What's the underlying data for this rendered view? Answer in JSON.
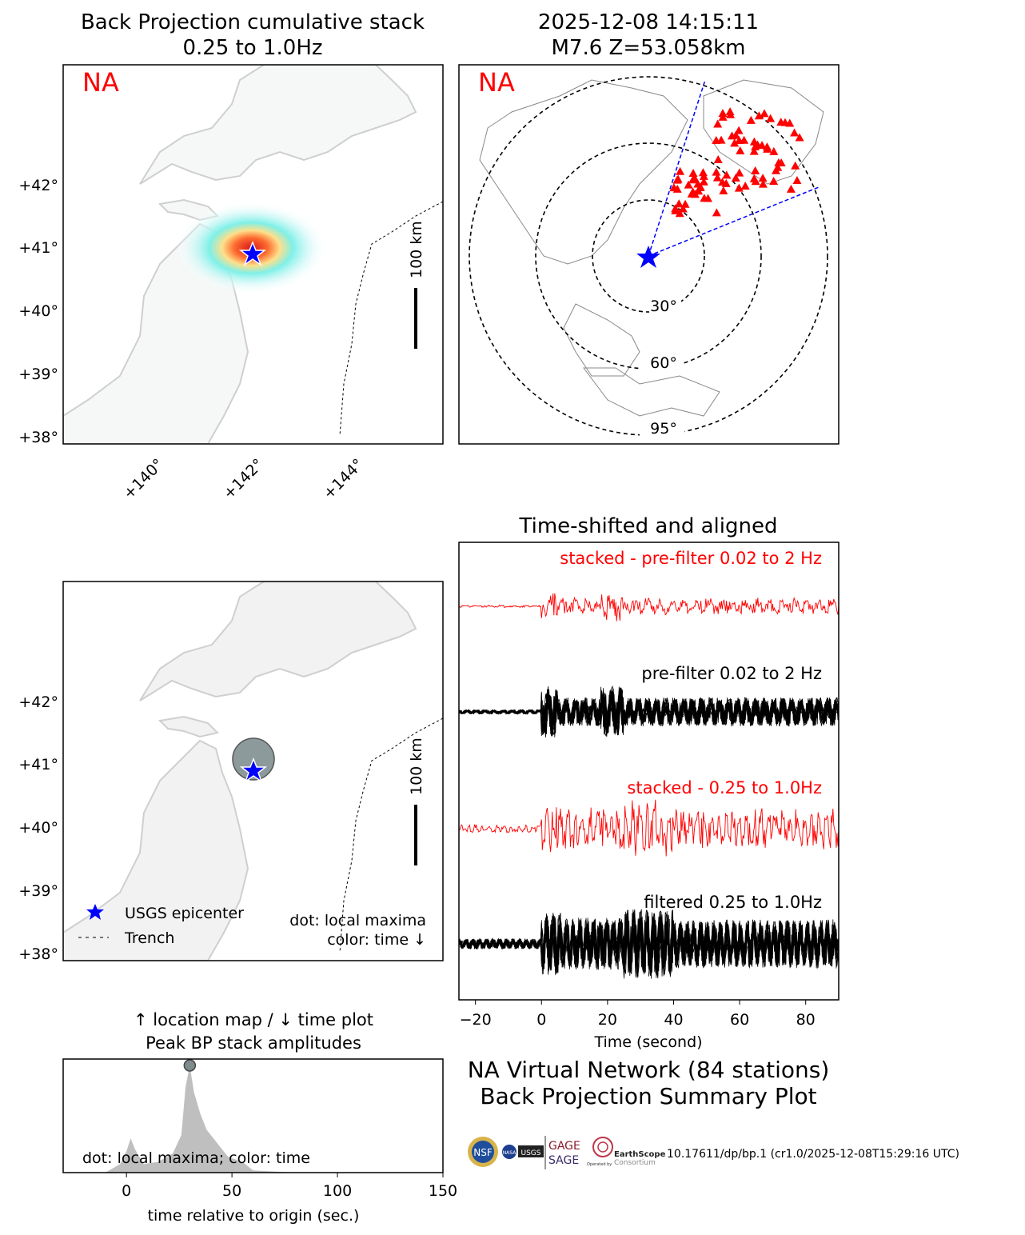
{
  "panels": {
    "bp_map": {
      "title": [
        "Back Projection cumulative stack",
        "0.25 to 1.0Hz"
      ],
      "network_tag": "NA",
      "scale_label": "100 km",
      "lat_ticks": [
        "+42°",
        "+41°",
        "+40°",
        "+39°",
        "+38°"
      ],
      "lon_ticks": [
        "+140°",
        "+142°",
        "+144°"
      ]
    },
    "station_map": {
      "title": [
        "2025-12-08 14:15:11",
        "M7.6 Z=53.058km"
      ],
      "network_tag": "NA",
      "ring_labels": [
        "30°",
        "60°",
        "95°"
      ]
    },
    "local_max_map": {
      "scale_label": "100 km",
      "lat_ticks": [
        "+42°",
        "+41°",
        "+40°",
        "+39°",
        "+38°"
      ],
      "legend": [
        "USGS epicenter",
        "Trench"
      ],
      "note": [
        "dot: local maxima",
        "color: time ↓"
      ]
    },
    "peak_plot": {
      "title": [
        "↑ location map / ↓ time plot",
        "Peak BP stack amplitudes"
      ],
      "note": "dot: local maxima; color: time",
      "xlabel": "time relative to origin (sec.)",
      "x_ticks": [
        "0",
        "50",
        "100",
        "150"
      ]
    },
    "traces": {
      "title": "Time-shifted and aligned",
      "labels": [
        "stacked - pre-filter 0.02 to 2 Hz",
        "pre-filter 0.02 to 2 Hz",
        "stacked - 0.25 to 1.0Hz",
        "filtered 0.25 to 1.0Hz"
      ],
      "xlabel": "Time (second)",
      "x_ticks": [
        "−20",
        "0",
        "20",
        "40",
        "60",
        "80"
      ]
    },
    "summary": {
      "lines": [
        "NA Virtual Network (84 stations)",
        "Back Projection Summary Plot"
      ],
      "doi": "10.17611/dp/bp.1 (cr1.0/2025-12-08T15:29:16 UTC)",
      "logo_text": [
        "NSF",
        "NASA",
        "USGS",
        "GAGE",
        "SAGE",
        "EarthScope",
        "Consortium",
        "Operated by"
      ]
    }
  },
  "colors": {
    "stack": "#ff0000",
    "traces": "#000000",
    "epicenter": "#0000ff",
    "land": "#f2f2f2",
    "coast": "#c8c8c8"
  },
  "chart_data": [
    {
      "type": "area",
      "title": "Peak BP stack amplitudes",
      "xlabel": "time relative to origin (sec.)",
      "xlim": [
        -30,
        150
      ],
      "x": [
        -30,
        -10,
        -3,
        0,
        2,
        4,
        8,
        15,
        22,
        26,
        28,
        30,
        32,
        35,
        38,
        42,
        48,
        55,
        60,
        80,
        150
      ],
      "values": [
        0,
        0,
        0.08,
        0.2,
        0.32,
        0.22,
        0.08,
        0.1,
        0.18,
        0.35,
        0.8,
        1.0,
        0.75,
        0.55,
        0.4,
        0.3,
        0.15,
        0.1,
        0.02,
        0,
        0
      ],
      "local_maxima": [
        {
          "x": 30,
          "y": 1.0
        }
      ]
    },
    {
      "type": "line",
      "title": "Time-shifted and aligned",
      "xlabel": "Time (second)",
      "xlim": [
        -25,
        90
      ],
      "series": [
        {
          "name": "stacked - pre-filter 0.02 to 2 Hz"
        },
        {
          "name": "pre-filter 0.02 to 2 Hz"
        },
        {
          "name": "stacked - 0.25 to 1.0Hz"
        },
        {
          "name": "filtered 0.25 to 1.0Hz"
        }
      ]
    }
  ]
}
